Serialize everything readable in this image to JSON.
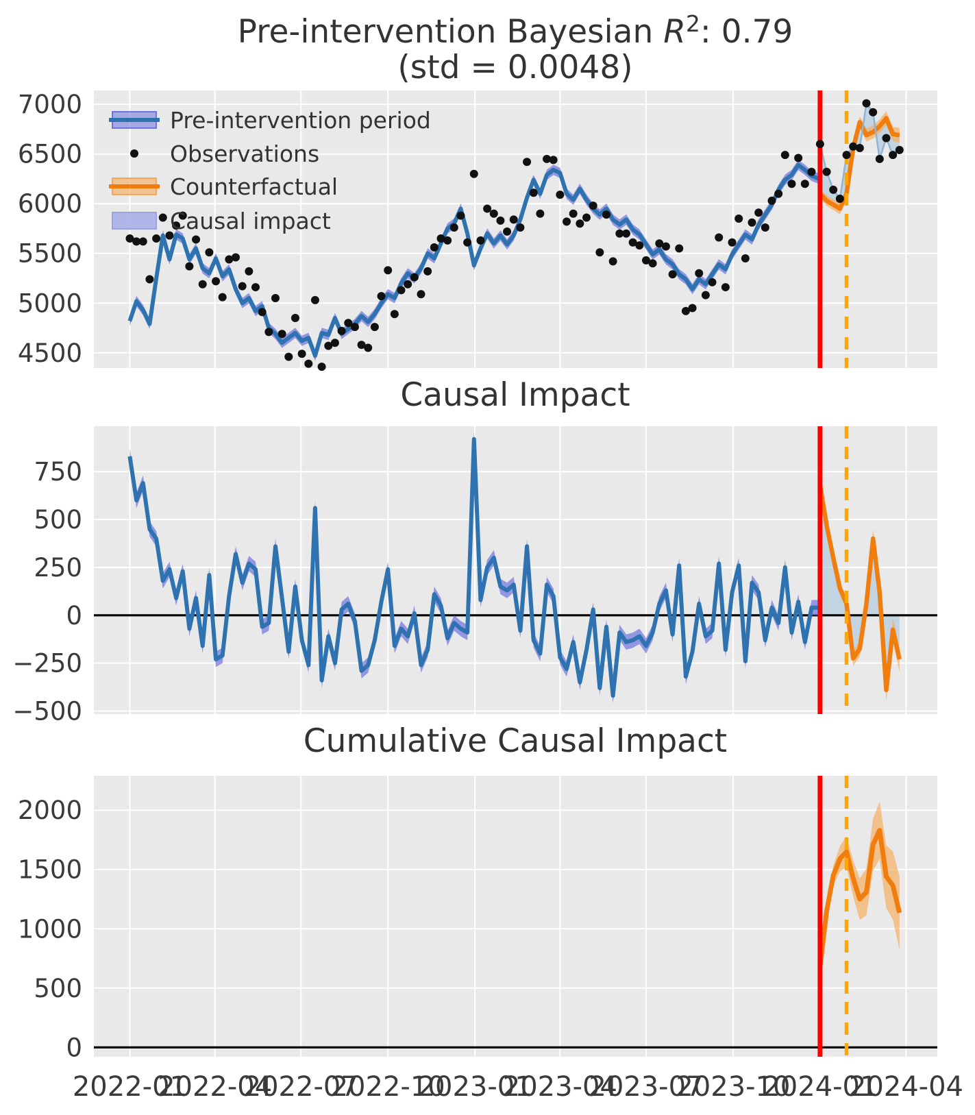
{
  "figure": {
    "top_title": {
      "prefix": "Pre-intervention Bayesian ",
      "r_symbol": "R",
      "exponent": "2",
      "suffix": ": 0.79",
      "line2": "(std = 0.0048)"
    },
    "middle_title": "Causal Impact",
    "bottom_title": "Cumulative Causal Impact"
  },
  "legend": {
    "items": [
      "Pre-intervention period",
      "Observations",
      "Counterfactual",
      "Causal impact"
    ]
  },
  "colors": {
    "background": "#ffffff",
    "axes_bg": "#e9e9e9",
    "grid": "#ffffff",
    "title_text": "#333333",
    "tick_text": "#3a3a3a",
    "blue_line": "#2e73b0",
    "blue_band": "#6e72dd",
    "orange_line": "#f07e0e",
    "orange_band": "#f7aa57",
    "impact_fill": "#a9c6de",
    "observation": "#111111",
    "vline_red": "#fd0000",
    "vline_orange": "#ffa600",
    "zero_line": "#000000"
  },
  "axis_x": {
    "xlim_days": [
      -38,
      854
    ],
    "ticks": [
      {
        "day": 0,
        "label": "2022-01"
      },
      {
        "day": 90,
        "label": "2022-04"
      },
      {
        "day": 181,
        "label": "2022-07"
      },
      {
        "day": 273,
        "label": "2022-10"
      },
      {
        "day": 365,
        "label": "2023-01"
      },
      {
        "day": 455,
        "label": "2023-04"
      },
      {
        "day": 546,
        "label": "2023-07"
      },
      {
        "day": 638,
        "label": "2023-10"
      },
      {
        "day": 730,
        "label": "2024-01"
      },
      {
        "day": 821,
        "label": "2024-04"
      }
    ],
    "intervention_day": 730,
    "dashed_marker_day": 758
  },
  "chart_data": [
    {
      "id": "observed-vs-model",
      "type": "line",
      "title": "Pre-intervention Bayesian R^2: 0.79 (std = 0.0048)",
      "ylim": [
        4347,
        7139
      ],
      "yticks": [
        4500,
        5000,
        5500,
        6000,
        6500,
        7000
      ],
      "pre": {
        "day_start": 0,
        "day_step": 7,
        "model_mean": [
          4820,
          5020,
          4930,
          4790,
          5250,
          5680,
          5440,
          5690,
          5650,
          5440,
          5550,
          5350,
          5300,
          5450,
          5270,
          5340,
          5140,
          5000,
          5050,
          4920,
          4970,
          4750,
          4690,
          4600,
          4650,
          4700,
          4620,
          4650,
          4470,
          4700,
          4680,
          4850,
          4690,
          4740,
          4790,
          4870,
          4810,
          4890,
          5000,
          5090,
          5050,
          5200,
          5300,
          5250,
          5350,
          5500,
          5450,
          5600,
          5750,
          5800,
          5950,
          5700,
          5380,
          5550,
          5700,
          5600,
          5680,
          5590,
          5680,
          5840,
          6060,
          6240,
          6100,
          6290,
          6340,
          6310,
          6100,
          6040,
          6150,
          6040,
          5950,
          5890,
          5950,
          5840,
          5790,
          5840,
          5740,
          5690,
          5590,
          5490,
          5540,
          5440,
          5390,
          5290,
          5240,
          5140,
          5240,
          5190,
          5290,
          5390,
          5340,
          5490,
          5590,
          5690,
          5640,
          5790,
          5890,
          5990,
          6140,
          6240,
          6290,
          6390,
          6340,
          6280
        ],
        "observations": [
          5650,
          5620,
          5620,
          5240,
          5650,
          5860,
          5680,
          5780,
          5880,
          5370,
          5640,
          5190,
          5510,
          5220,
          5060,
          5440,
          5460,
          5170,
          5320,
          5160,
          4910,
          4710,
          5050,
          4690,
          4460,
          4850,
          4490,
          4390,
          5030,
          4360,
          4570,
          4600,
          4720,
          4800,
          4760,
          4580,
          4550,
          4760,
          5070,
          5330,
          4890,
          5130,
          5190,
          5260,
          5090,
          5320,
          5560,
          5650,
          5630,
          5760,
          5880,
          5610,
          6300,
          5630,
          5950,
          5900,
          5830,
          5720,
          5840,
          5760,
          6420,
          6110,
          5900,
          6450,
          6440,
          6090,
          5820,
          5900,
          5800,
          5860,
          5980,
          5510,
          5890,
          5420,
          5700,
          5700,
          5610,
          5580,
          5430,
          5400,
          5600,
          5570,
          5290,
          5550,
          4920,
          4950,
          5300,
          5080,
          5210,
          5660,
          5160,
          5610,
          5850,
          5450,
          5810,
          5910,
          5760,
          6030,
          6100,
          6490,
          6200,
          6460,
          6200,
          6320
        ],
        "model_band_halfwidth": 52
      },
      "post": {
        "day_start": 730,
        "day_step": 7,
        "counterfactual": [
          6100,
          6030,
          5990,
          5950,
          6100,
          6560,
          6820,
          6690,
          6720,
          6780,
          6860,
          6700,
          6690
        ],
        "observations": [
          6600,
          6320,
          6140,
          6050,
          6490,
          6575,
          6560,
          7010,
          6920,
          6450,
          6660,
          6490,
          6540
        ],
        "cf_band_halfwidth": [
          50,
          75
        ]
      }
    },
    {
      "id": "causal-impact",
      "type": "line",
      "title": "Causal Impact",
      "ylim": [
        -516,
        987
      ],
      "yticks": [
        -500,
        -250,
        0,
        250,
        500,
        750
      ],
      "pre_band_halfwidth": 40,
      "post": {
        "day_start": 730,
        "day_step": 7,
        "impact": [
          680,
          470,
          300,
          140,
          60,
          -225,
          -175,
          60,
          400,
          120,
          -390,
          -75,
          -230
        ],
        "band_halfwidth": [
          20,
          65
        ]
      },
      "zero_line": 0
    },
    {
      "id": "cumulative-causal-impact",
      "type": "line",
      "title": "Cumulative Causal Impact",
      "ylim": [
        -79,
        2290
      ],
      "yticks": [
        0,
        500,
        1000,
        1500,
        2000
      ],
      "post": {
        "day_start": 730,
        "day_step": 7,
        "band_halfwidth": [
          40,
          310
        ]
      },
      "zero_line": 0
    }
  ]
}
